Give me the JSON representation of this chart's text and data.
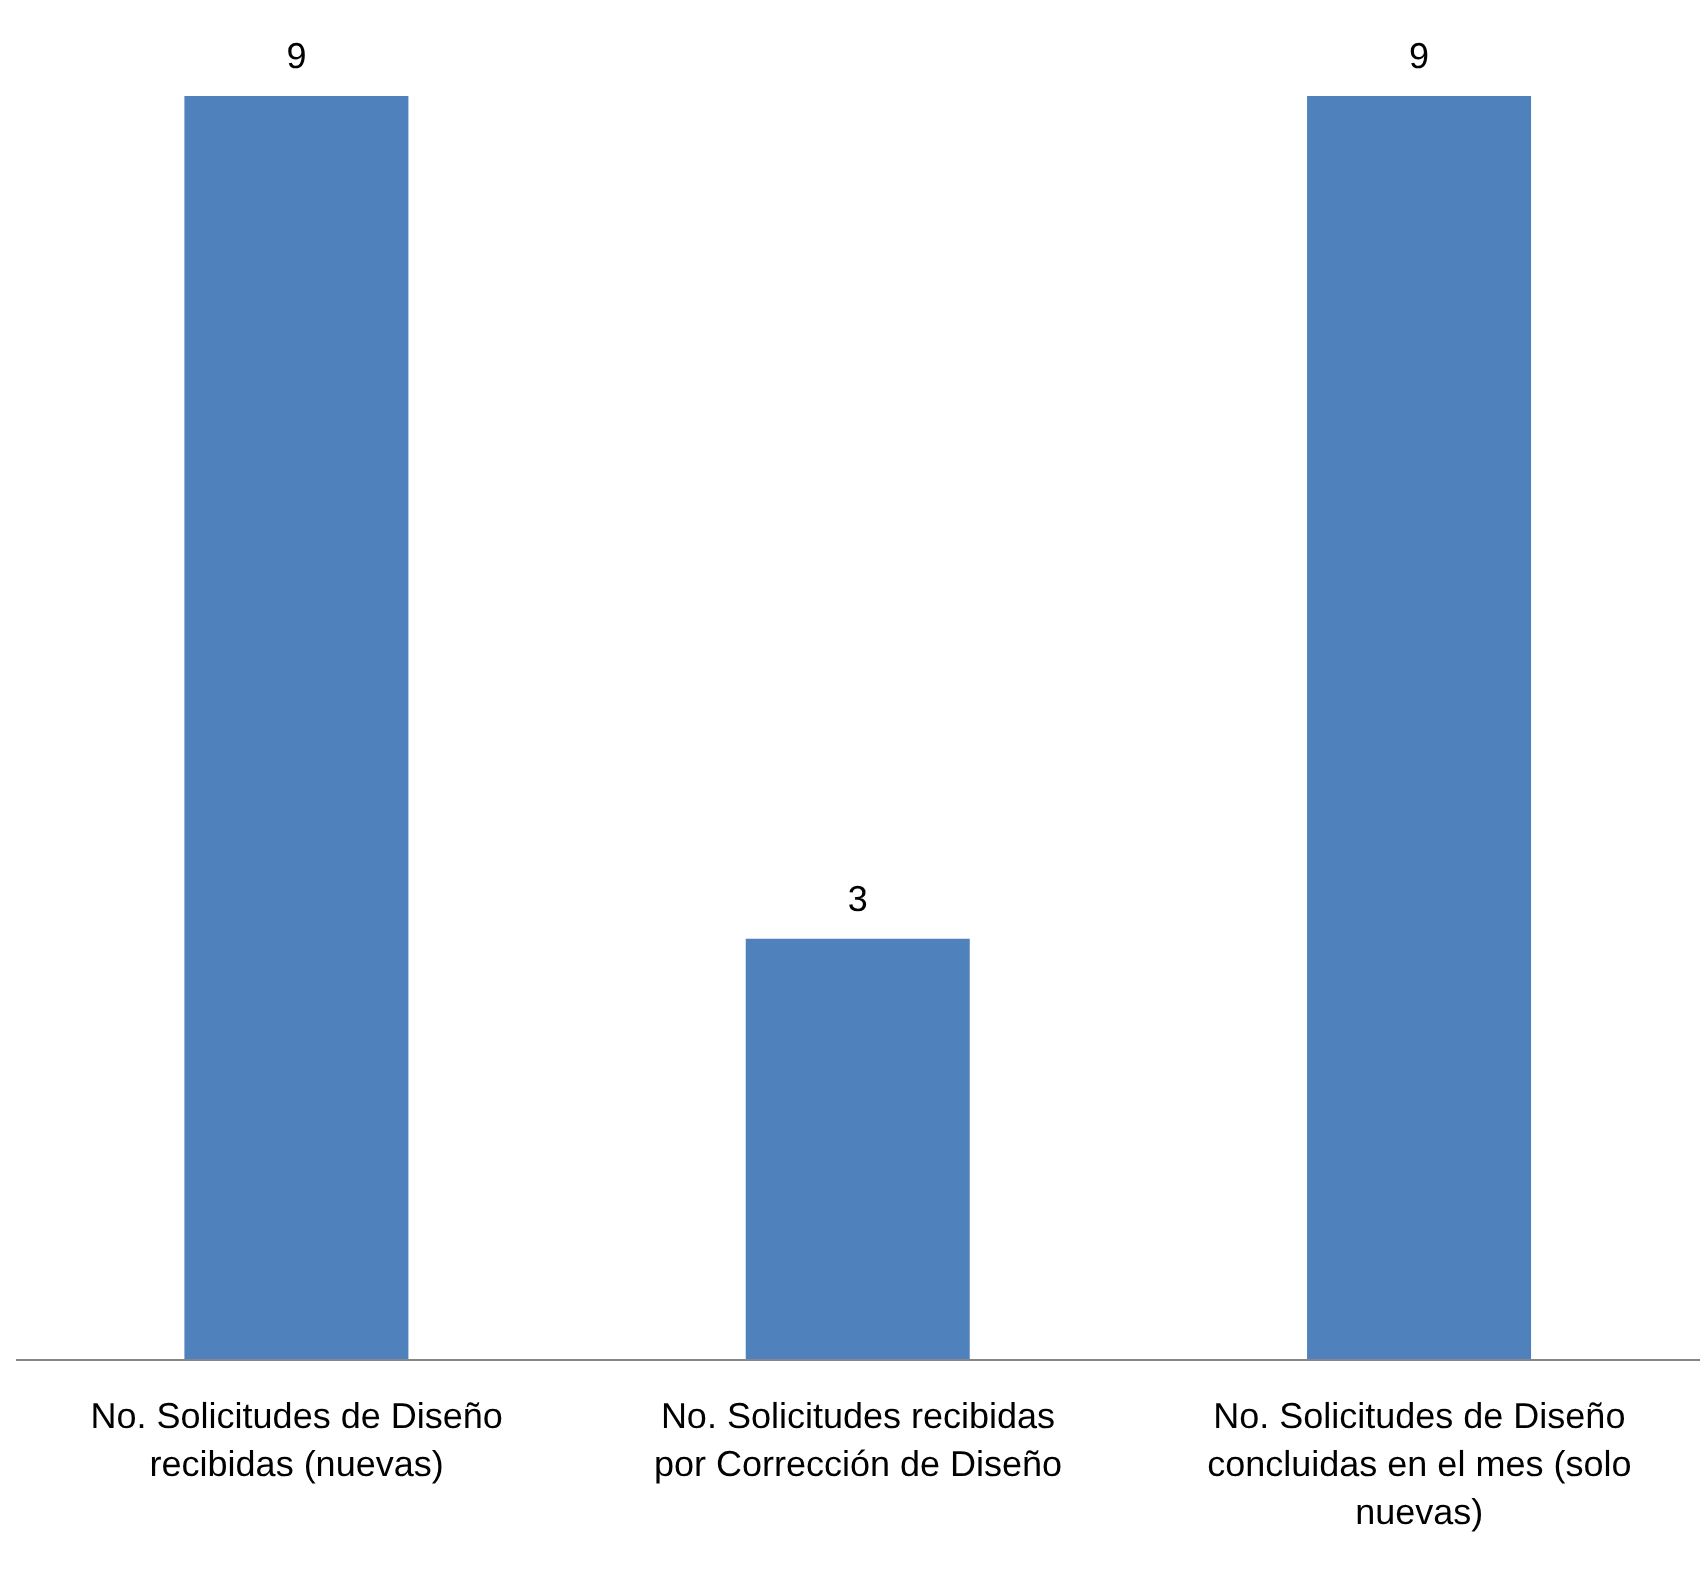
{
  "chart_data": {
    "type": "bar",
    "categories": [
      "No. Solicitudes de Diseño recibidas (nuevas)",
      "No. Solicitudes recibidas por Corrección de Diseño",
      "No. Solicitudes de Diseño concluidas en el mes (solo nuevas)"
    ],
    "values": [
      9,
      3,
      9
    ],
    "color": "#4f81bd",
    "data_labels": true,
    "grid": false,
    "legend": false
  }
}
